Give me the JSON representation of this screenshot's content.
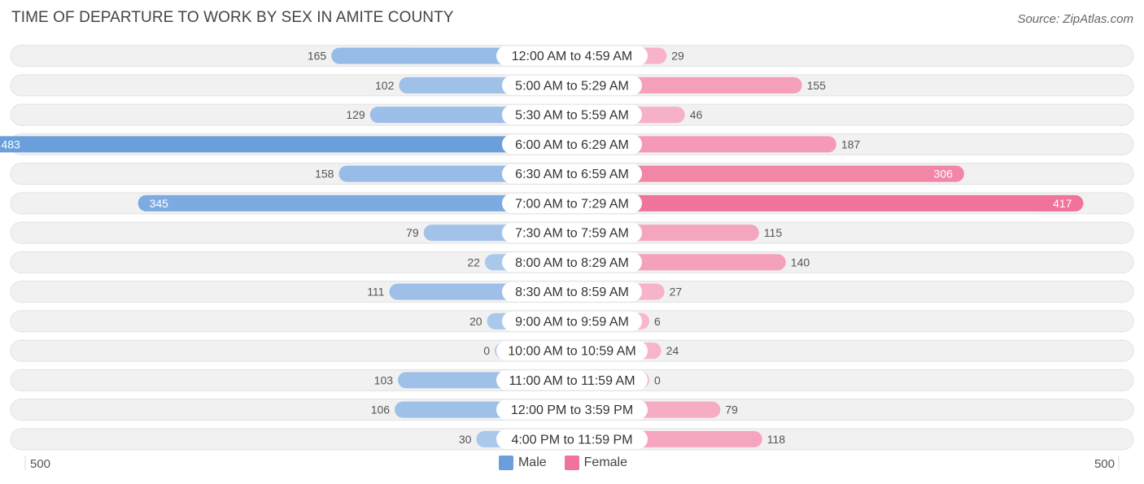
{
  "header": {
    "title": "TIME OF DEPARTURE TO WORK BY SEX IN AMITE COUNTY",
    "source": "Source: ZipAtlas.com"
  },
  "chart_data": {
    "type": "bar",
    "orientation": "horizontal-diverging",
    "categories": [
      "12:00 AM to 4:59 AM",
      "5:00 AM to 5:29 AM",
      "5:30 AM to 5:59 AM",
      "6:00 AM to 6:29 AM",
      "6:30 AM to 6:59 AM",
      "7:00 AM to 7:29 AM",
      "7:30 AM to 7:59 AM",
      "8:00 AM to 8:29 AM",
      "8:30 AM to 8:59 AM",
      "9:00 AM to 9:59 AM",
      "10:00 AM to 10:59 AM",
      "11:00 AM to 11:59 AM",
      "12:00 PM to 3:59 PM",
      "4:00 PM to 11:59 PM"
    ],
    "series": [
      {
        "name": "Male",
        "color": "#6a9fdc",
        "values": [
          165,
          102,
          129,
          483,
          158,
          345,
          79,
          22,
          111,
          20,
          0,
          103,
          106,
          30
        ]
      },
      {
        "name": "Female",
        "color": "#f0739a",
        "values": [
          29,
          155,
          46,
          187,
          306,
          417,
          115,
          140,
          27,
          6,
          24,
          0,
          79,
          118
        ]
      }
    ],
    "axis": {
      "left_label": "500",
      "right_label": "500",
      "max": 500
    },
    "legend": {
      "position": "bottom-center"
    }
  }
}
